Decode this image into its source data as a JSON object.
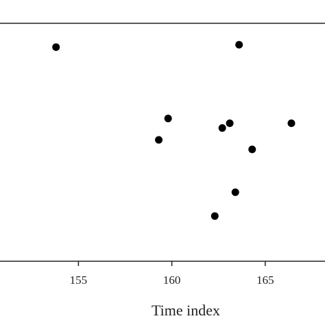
{
  "chart_data": {
    "type": "scatter",
    "title": "",
    "xlabel": "Time index",
    "ylabel": "",
    "xlim": [
      150.8,
      168.2
    ],
    "ylim": [
      0,
      1
    ],
    "x_ticks": [
      155,
      160,
      165
    ],
    "x_tick_labels": [
      "155",
      "160",
      "165"
    ],
    "grid": false,
    "legend": "none",
    "marker_color": "#000000",
    "points": [
      {
        "x": 153.8,
        "y": 0.9
      },
      {
        "x": 159.3,
        "y": 0.51
      },
      {
        "x": 159.8,
        "y": 0.6
      },
      {
        "x": 162.3,
        "y": 0.19
      },
      {
        "x": 162.7,
        "y": 0.56
      },
      {
        "x": 163.1,
        "y": 0.58
      },
      {
        "x": 163.4,
        "y": 0.29
      },
      {
        "x": 163.6,
        "y": 0.91
      },
      {
        "x": 164.3,
        "y": 0.47
      },
      {
        "x": 166.4,
        "y": 0.58
      }
    ]
  }
}
